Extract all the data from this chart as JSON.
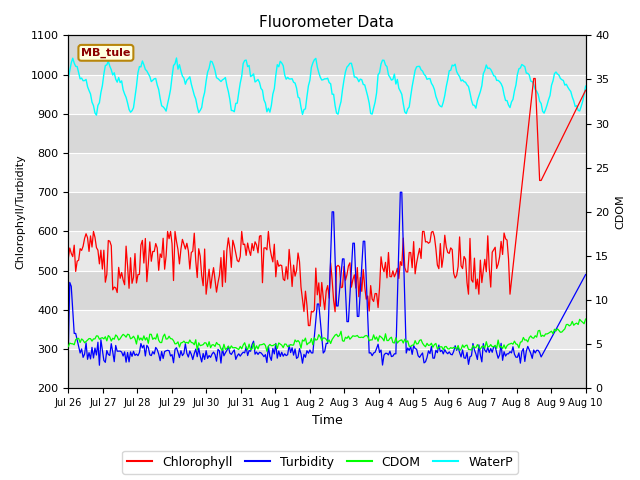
{
  "title": "Fluorometer Data",
  "xlabel": "Time",
  "ylabel_left": "Chlorophyll/Turbidity",
  "ylabel_right": "CDOM",
  "ylim_left": [
    200,
    1100
  ],
  "ylim_right": [
    0,
    40
  ],
  "background_color": "#ffffff",
  "plot_bg_bands": [
    "#d8d8d8",
    "#e8e8e8"
  ],
  "legend_labels": [
    "Chlorophyll",
    "Turbidity",
    "CDOM",
    "WaterP"
  ],
  "station_label": "MB_tule",
  "x_tick_labels": [
    "Jul 26",
    "Jul 27",
    "Jul 28",
    "Jul 29",
    "Jul 30",
    "Jul 31",
    "Aug 1",
    "Aug 2",
    "Aug 3",
    "Aug 4",
    "Aug 5",
    "Aug 6",
    "Aug 7",
    "Aug 8",
    "Aug 9",
    "Aug 10"
  ],
  "yticks_left": [
    200,
    300,
    400,
    500,
    600,
    700,
    800,
    900,
    1000,
    1100
  ],
  "yticks_right": [
    0,
    5,
    10,
    15,
    20,
    25,
    30,
    35,
    40
  ],
  "n_points": 350,
  "seed": 42
}
